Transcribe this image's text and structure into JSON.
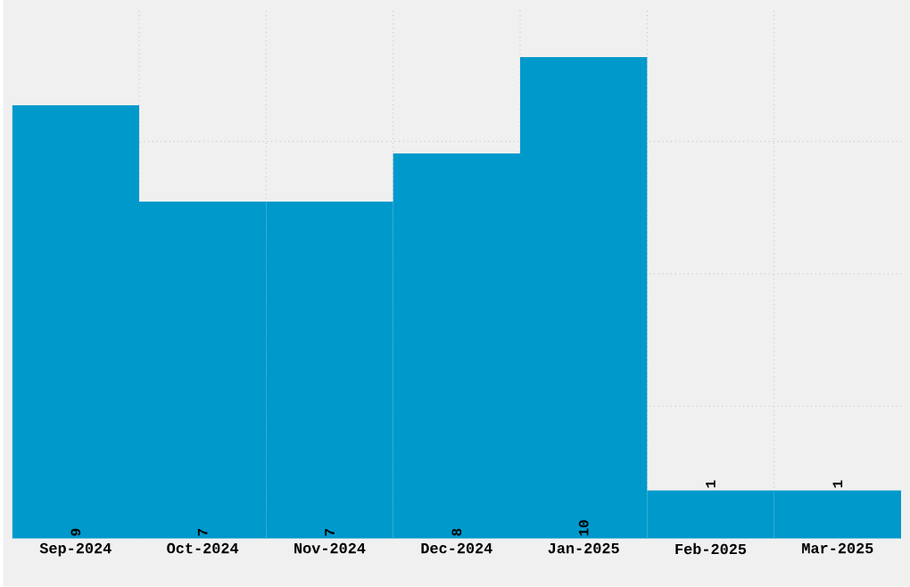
{
  "chart_data": {
    "type": "bar",
    "categories": [
      "Sep-2024",
      "Oct-2024",
      "Nov-2024",
      "Dec-2024",
      "Jan-2025",
      "Feb-2025",
      "Mar-2025"
    ],
    "values": [
      9,
      7,
      7,
      8,
      10,
      1,
      1
    ],
    "color": "#0099cc",
    "ylim": [
      0,
      11
    ],
    "yticks": [
      {
        "value": 2.75,
        "label": null
      },
      {
        "value": 5.5,
        "label": null
      },
      {
        "value": 8.25,
        "label": null
      }
    ],
    "tick_labels": "x",
    "grid": true,
    "data_labels": true
  }
}
